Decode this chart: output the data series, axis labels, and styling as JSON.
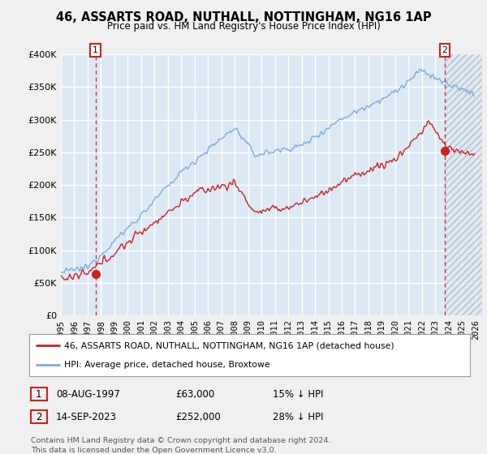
{
  "title": "46, ASSARTS ROAD, NUTHALL, NOTTINGHAM, NG16 1AP",
  "subtitle": "Price paid vs. HM Land Registry's House Price Index (HPI)",
  "ylim": [
    0,
    400000
  ],
  "xlim_start": 1995.0,
  "xlim_end": 2026.5,
  "yticks": [
    0,
    50000,
    100000,
    150000,
    200000,
    250000,
    300000,
    350000,
    400000
  ],
  "ytick_labels": [
    "£0",
    "£50K",
    "£100K",
    "£150K",
    "£200K",
    "£250K",
    "£300K",
    "£350K",
    "£400K"
  ],
  "bg_color": "#f0f0f0",
  "plot_bg_color": "#dce9f5",
  "grid_color": "#ffffff",
  "hpi_color": "#7aabdc",
  "price_color": "#cc2222",
  "point1_x": 1997.58,
  "point1_y": 63000,
  "point1_label": "1",
  "point1_date": "08-AUG-1997",
  "point1_price": "£63,000",
  "point1_hpi": "15% ↓ HPI",
  "point2_x": 2023.7,
  "point2_y": 252000,
  "point2_label": "2",
  "point2_date": "14-SEP-2023",
  "point2_price": "£252,000",
  "point2_hpi": "28% ↓ HPI",
  "legend_line1": "46, ASSARTS ROAD, NUTHALL, NOTTINGHAM, NG16 1AP (detached house)",
  "legend_line2": "HPI: Average price, detached house, Broxtowe",
  "footnote": "Contains HM Land Registry data © Crown copyright and database right 2024.\nThis data is licensed under the Open Government Licence v3.0.",
  "xticks": [
    1995,
    1996,
    1997,
    1998,
    1999,
    2000,
    2001,
    2002,
    2003,
    2004,
    2005,
    2006,
    2007,
    2008,
    2009,
    2010,
    2011,
    2012,
    2013,
    2014,
    2015,
    2016,
    2017,
    2018,
    2019,
    2020,
    2021,
    2022,
    2023,
    2024,
    2025,
    2026
  ]
}
